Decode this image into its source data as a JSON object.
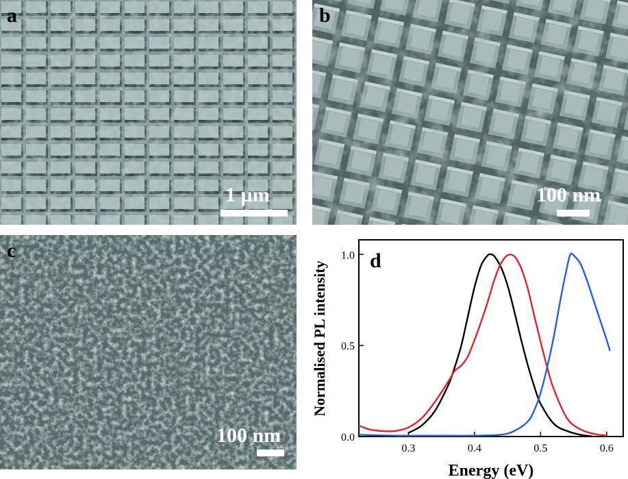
{
  "panels": {
    "a": {
      "letter": "a",
      "scale_label": "1 µm"
    },
    "b": {
      "letter": "b",
      "scale_label": "100 nm"
    },
    "c": {
      "letter": "c",
      "scale_label": "100 nm"
    },
    "d": {
      "letter": "d"
    }
  },
  "colors": {
    "sem_base": "#8aa3a1",
    "series_black": "#000000",
    "series_red": "#e8202a",
    "series_blue": "#2060e0"
  },
  "chart_data": {
    "type": "line",
    "xlabel": "Energy (eV)",
    "ylabel": "Normalised PL intensity",
    "xlim": [
      0.225,
      0.625
    ],
    "ylim": [
      0.0,
      1.08
    ],
    "xticks": [
      "0.3",
      "0.4",
      "0.5",
      "0.6"
    ],
    "xtick_values": [
      0.3,
      0.4,
      0.5,
      0.6
    ],
    "yticks": [
      "0.0",
      "0.5",
      "1.0"
    ],
    "ytick_values": [
      0.0,
      0.5,
      1.0
    ],
    "series": [
      {
        "color": "#000000",
        "x": [
          0.3,
          0.32,
          0.34,
          0.36,
          0.37,
          0.38,
          0.39,
          0.4,
          0.41,
          0.42,
          0.425,
          0.43,
          0.44,
          0.45,
          0.46,
          0.47,
          0.48,
          0.49,
          0.5,
          0.52,
          0.54,
          0.56,
          0.58
        ],
        "y": [
          0.02,
          0.06,
          0.14,
          0.28,
          0.38,
          0.5,
          0.66,
          0.82,
          0.94,
          0.995,
          1.0,
          0.99,
          0.93,
          0.83,
          0.69,
          0.54,
          0.4,
          0.28,
          0.18,
          0.07,
          0.03,
          0.01,
          0.0
        ]
      },
      {
        "color": "#e8202a",
        "x": [
          0.225,
          0.24,
          0.26,
          0.28,
          0.3,
          0.32,
          0.34,
          0.36,
          0.37,
          0.38,
          0.39,
          0.4,
          0.41,
          0.42,
          0.43,
          0.44,
          0.45,
          0.46,
          0.47,
          0.48,
          0.49,
          0.5,
          0.51,
          0.52,
          0.54,
          0.56,
          0.58,
          0.6
        ],
        "y": [
          0.06,
          0.04,
          0.03,
          0.03,
          0.05,
          0.1,
          0.19,
          0.3,
          0.36,
          0.39,
          0.44,
          0.53,
          0.63,
          0.74,
          0.86,
          0.95,
          0.995,
          0.99,
          0.93,
          0.82,
          0.67,
          0.52,
          0.38,
          0.26,
          0.1,
          0.04,
          0.015,
          0.005
        ]
      },
      {
        "color": "#2060e0",
        "x": [
          0.225,
          0.28,
          0.34,
          0.4,
          0.44,
          0.46,
          0.48,
          0.49,
          0.5,
          0.51,
          0.52,
          0.53,
          0.54,
          0.545,
          0.55,
          0.56,
          0.57,
          0.58,
          0.59,
          0.6,
          0.605
        ],
        "y": [
          0.01,
          0.005,
          0.005,
          0.005,
          0.01,
          0.03,
          0.08,
          0.14,
          0.24,
          0.38,
          0.55,
          0.75,
          0.93,
          1.0,
          0.995,
          0.95,
          0.86,
          0.75,
          0.64,
          0.53,
          0.47
        ]
      }
    ]
  }
}
